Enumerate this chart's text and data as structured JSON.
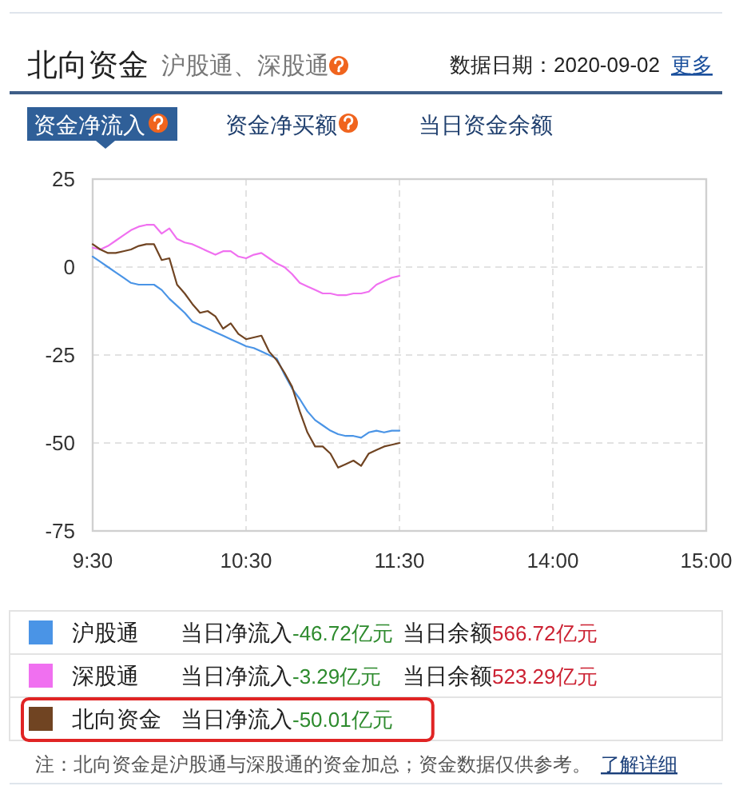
{
  "chart_data": {
    "type": "line",
    "title": "北向资金",
    "subtitle": "沪股通、深股通",
    "categories": [
      "9:30",
      null,
      null,
      null,
      null,
      null,
      null,
      null,
      null,
      null,
      null,
      null,
      null,
      null,
      null,
      null,
      null,
      null,
      null,
      null,
      "10:30",
      null,
      null,
      null,
      null,
      null,
      null,
      null,
      null,
      null,
      null,
      null,
      null,
      null,
      null,
      null,
      null,
      null,
      null,
      null,
      "11:30",
      null,
      null,
      null,
      null,
      null,
      null,
      null,
      null,
      null,
      null,
      null,
      null,
      null,
      null,
      null,
      null,
      null,
      null,
      null,
      "14:00",
      null,
      null,
      null,
      null,
      null,
      null,
      null,
      null,
      null,
      null,
      null,
      null,
      null,
      null,
      null,
      null,
      null,
      null,
      null,
      "15:00"
    ],
    "ylim": [
      -75,
      25
    ],
    "yticks": [
      -75,
      -50,
      -25,
      0,
      25
    ],
    "grid": true,
    "legend": "bottom",
    "line_style": "solid",
    "series": [
      {
        "name": "沪股通",
        "color": "#4a94e6",
        "values": [
          3,
          1.5,
          0,
          -1.5,
          -3,
          -4.5,
          -5,
          -5,
          -5,
          -6.5,
          -9,
          -11,
          -13,
          -15.5,
          -16.5,
          -17.5,
          -18.5,
          -19.5,
          -20.5,
          -21.5,
          -22.5,
          -23,
          -24,
          -25,
          -26,
          -30.5,
          -34.5,
          -37.5,
          -41,
          -43.5,
          -45,
          -46.5,
          -47.5,
          -48,
          -48,
          -48.5,
          -47,
          -46.5,
          -47,
          -46.5,
          -46.5,
          null,
          null,
          null,
          null,
          null,
          null,
          null,
          null,
          null,
          null,
          null,
          null,
          null,
          null,
          null,
          null,
          null,
          null,
          null,
          null,
          null,
          null,
          null,
          null,
          null,
          null,
          null,
          null,
          null,
          null,
          null,
          null,
          null,
          null,
          null,
          null,
          null,
          null,
          null,
          null
        ]
      },
      {
        "name": "深股通",
        "color": "#f070f0",
        "values": [
          5.5,
          5,
          6,
          7.5,
          9,
          10.5,
          11.5,
          12,
          12,
          9.5,
          11,
          8,
          7,
          6.5,
          5.5,
          4.5,
          3.5,
          4.5,
          4.5,
          3,
          2.5,
          3.5,
          4,
          2.5,
          1,
          0,
          -2,
          -4.5,
          -5.5,
          -6.5,
          -7.5,
          -7.5,
          -8,
          -8,
          -7.5,
          -7.5,
          -7,
          -5,
          -4,
          -3,
          -2.5,
          null,
          null,
          null,
          null,
          null,
          null,
          null,
          null,
          null,
          null,
          null,
          null,
          null,
          null,
          null,
          null,
          null,
          null,
          null,
          null,
          null,
          null,
          null,
          null,
          null,
          null,
          null,
          null,
          null,
          null,
          null,
          null,
          null,
          null,
          null,
          null,
          null,
          null,
          null,
          null
        ]
      },
      {
        "name": "北向资金",
        "color": "#704422",
        "values": [
          6.5,
          5,
          4,
          4,
          4.5,
          5,
          6,
          6.5,
          6.5,
          2,
          2.5,
          -5,
          -7.5,
          -10.5,
          -13,
          -12.5,
          -14,
          -17.5,
          -16,
          -19,
          -20.5,
          -20,
          -19.5,
          -24,
          -26.5,
          -30,
          -34,
          -41,
          -47,
          -51,
          -51,
          -53,
          -57,
          -56,
          -55,
          -56.5,
          -53,
          -52,
          -51,
          -50.5,
          -50,
          null,
          null,
          null,
          null,
          null,
          null,
          null,
          null,
          null,
          null,
          null,
          null,
          null,
          null,
          null,
          null,
          null,
          null,
          null,
          null,
          null,
          null,
          null,
          null,
          null,
          null,
          null,
          null,
          null,
          null,
          null,
          null,
          null,
          null,
          null,
          null,
          null,
          null,
          null,
          null
        ]
      }
    ],
    "annotations": [
      "数据日期：2020-09-02",
      "更多",
      "资金净流入",
      "资金净买额",
      "当日资金余额",
      "当日净流入",
      "-46.72亿元",
      "当日余额",
      "566.72亿元",
      "当日净流入",
      "-3.29亿元",
      "当日余额",
      "523.29亿元",
      "当日净流入",
      "-50.01亿元",
      "注：北向资金是沪股通与深股通的资金加总；资金数据仅供参考。",
      "了解详细"
    ]
  }
}
